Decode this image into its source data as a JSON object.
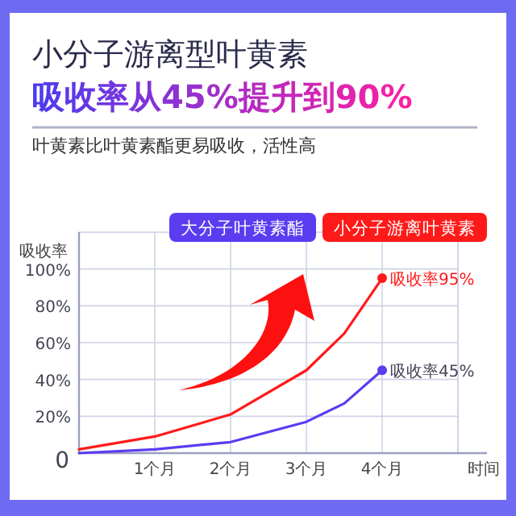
{
  "chart_data": {
    "type": "line",
    "title": "小分子游离型叶黄素",
    "subtitle": "吸收率从45%提升到90%",
    "ylabel": "吸收率",
    "xlabel": "时间",
    "annotations": [
      "叶黄素比叶黄素酯更易吸收，活性高",
      {
        "text": "吸收率95%",
        "x": 4,
        "y": 95
      },
      {
        "text": "吸收率45%",
        "x": 4,
        "y": 45
      }
    ],
    "xlim": [
      0,
      5
    ],
    "xticks": [
      {
        "value": 0,
        "label": null
      },
      {
        "value": 1,
        "label": "1个月"
      },
      {
        "value": 2,
        "label": "2个月"
      },
      {
        "value": 3,
        "label": "3个月"
      },
      {
        "value": 4,
        "label": "4个月"
      },
      {
        "value": 5,
        "label": null
      }
    ],
    "ylim": [
      0,
      120
    ],
    "yticks": [
      {
        "value": 0,
        "label": "0"
      },
      {
        "value": 20,
        "label": "20%"
      },
      {
        "value": 40,
        "label": "40%"
      },
      {
        "value": 60,
        "label": "60%"
      },
      {
        "value": 80,
        "label": "80%"
      },
      {
        "value": 100,
        "label": "100%"
      }
    ],
    "grid": true,
    "legend": "top right",
    "series": [
      {
        "name": "大分子叶黄素酯",
        "color": "#5b3cf0",
        "x": [
          0,
          1,
          2,
          3,
          3.5,
          4
        ],
        "values": [
          0,
          2,
          6,
          17,
          27,
          45
        ]
      },
      {
        "name": "小分子游离叶黄素",
        "color": "#ff1a1a",
        "x": [
          0,
          1,
          2,
          3,
          3.5,
          4
        ],
        "values": [
          2,
          9,
          21,
          45,
          65,
          95
        ]
      }
    ]
  }
}
